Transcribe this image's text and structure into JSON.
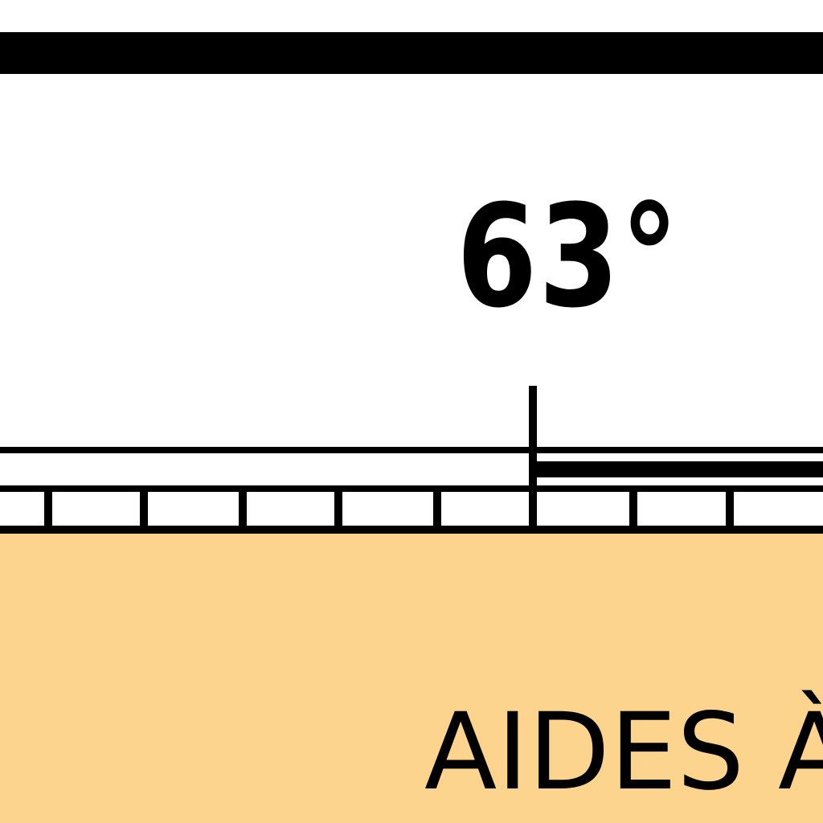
{
  "bearing": {
    "label": "63°"
  },
  "banner": {
    "title": "AIDES À"
  },
  "colors": {
    "background": "#ffffff",
    "ink": "#000000",
    "panel": "#fdd48d"
  }
}
